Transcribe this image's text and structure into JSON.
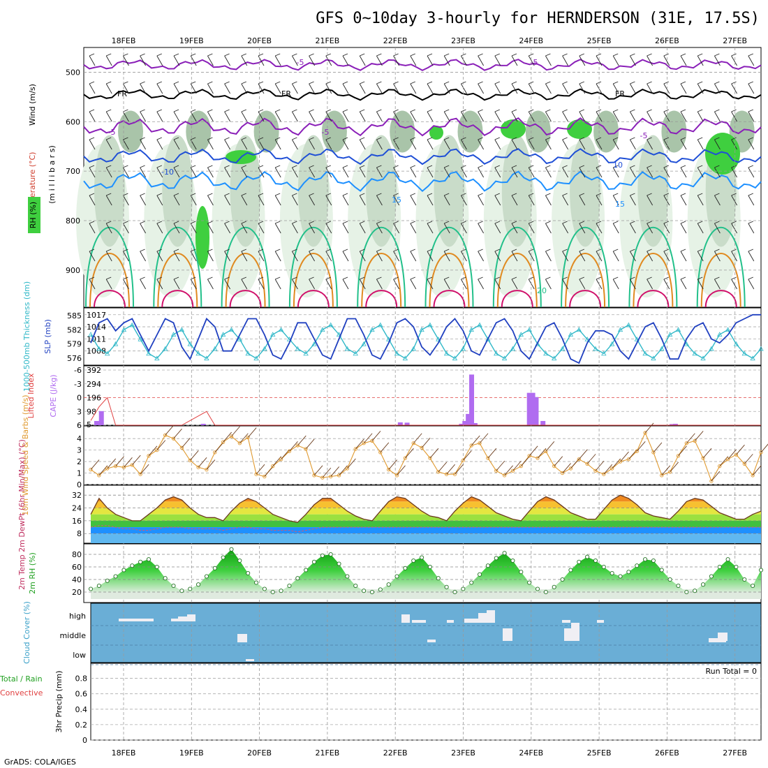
{
  "title": "GFS 0~10day 3-hourly for HERNDERSON (31E, 17.5S)",
  "credit": "GrADS: COLA/IGES",
  "dates": [
    "18FEB",
    "19FEB",
    "20FEB",
    "21FEB",
    "22FEB",
    "23FEB",
    "24FEB",
    "25FEB",
    "26FEB",
    "27FEB"
  ],
  "colors": {
    "purple": "#8a1fb8",
    "black": "#000000",
    "blue": "#1f4fd6",
    "skyblue": "#1e90ff",
    "teal": "#22c08a",
    "orange": "#e08a20",
    "magenta": "#d0106a",
    "rh_green": "#3fcf3f",
    "cape_bar": "#b06cf0",
    "li_line": "#e04040",
    "slp_line": "#2040c0",
    "thick_line": "#30b8c8",
    "wind_line": "#e09a30",
    "cloud_bg": "#6aaed6"
  },
  "panels": {
    "upper": {
      "axis_title_wind": "Wind (m/s)",
      "axis_title_temp": "Temperature (°C)",
      "axis_title_rh": "RH (%)",
      "axis_title_p": "(m i l l i b a r s)",
      "pressure_ticks": [
        "500",
        "600",
        "700",
        "800",
        "900"
      ],
      "contour_labels": [
        {
          "text": "-5",
          "color": "purple"
        },
        {
          "text": "-5",
          "color": "purple"
        },
        {
          "text": "FR",
          "color": "black"
        },
        {
          "text": "FR",
          "color": "black"
        },
        {
          "text": "FR",
          "color": "black"
        },
        {
          "text": "-5",
          "color": "purple"
        },
        {
          "text": "-5",
          "color": "purple"
        },
        {
          "text": "-5",
          "color": "purple"
        },
        {
          "text": "-10",
          "color": "blue"
        },
        {
          "text": "10",
          "color": "blue"
        },
        {
          "text": "15",
          "color": "skyblue"
        },
        {
          "text": "15",
          "color": "skyblue"
        },
        {
          "text": "20",
          "color": "teal"
        }
      ]
    },
    "slp": {
      "axis_title_thick": "1000-500mb Thickness (dm)",
      "axis_title_slp": "SLP (mb)",
      "ticks_left": [
        "585",
        "582",
        "579",
        "576"
      ],
      "ticks_right": [
        "1017",
        "1014",
        "1011",
        "1008"
      ],
      "slp_values": [
        1010,
        1015,
        1016,
        1013,
        1015,
        1016,
        1012,
        1008,
        1012,
        1016,
        1015,
        1009,
        1006,
        1011,
        1016,
        1014,
        1008,
        1008,
        1012,
        1016,
        1016,
        1012,
        1007,
        1006,
        1010,
        1015,
        1015,
        1011,
        1007,
        1006,
        1011,
        1016,
        1016,
        1012,
        1007,
        1006,
        1010,
        1015,
        1016,
        1014,
        1009,
        1007,
        1010,
        1014,
        1016,
        1013,
        1008,
        1007,
        1011,
        1015,
        1016,
        1013,
        1008,
        1006,
        1010,
        1014,
        1015,
        1011,
        1006,
        1005,
        1010,
        1013,
        1013,
        1012,
        1008,
        1006,
        1010,
        1014,
        1015,
        1011,
        1006,
        1006,
        1011,
        1014,
        1015,
        1011,
        1010,
        1012,
        1015,
        1016,
        1017,
        1017
      ],
      "thick_values": [
        581,
        578,
        577,
        579,
        582,
        583,
        580,
        577,
        576,
        578,
        581,
        582,
        579,
        577,
        576,
        578,
        581,
        582,
        580,
        577,
        576,
        578,
        581,
        582,
        580,
        578,
        577,
        579,
        582,
        583,
        581,
        578,
        577,
        579,
        582,
        583,
        580,
        577,
        576,
        578,
        582,
        583,
        580,
        577,
        576,
        578,
        582,
        583,
        580,
        577,
        576,
        578,
        581,
        582,
        579,
        577,
        576,
        578,
        581,
        582,
        580,
        578,
        577,
        579,
        582,
        583,
        580,
        577,
        576,
        578,
        581,
        582,
        579,
        577,
        576,
        578,
        581,
        582,
        579,
        577,
        576,
        578
      ]
    },
    "cape": {
      "axis_title_li": "Lifted Index",
      "axis_title_cape": "CAPE (J/kg)",
      "ticks_left": [
        "-6",
        "-3",
        "0",
        "3",
        "6"
      ],
      "ticks_right": [
        "392",
        "294",
        "196",
        "98",
        "5"
      ],
      "li_values": [
        5,
        2,
        0,
        6,
        6,
        6,
        6,
        6,
        6,
        6,
        6,
        6,
        5,
        4,
        3,
        6,
        6,
        6,
        6,
        6,
        6,
        6,
        6,
        6,
        6,
        6,
        6,
        6,
        6,
        6,
        6,
        6,
        6,
        6,
        6,
        6,
        6,
        6,
        6,
        6,
        6,
        6,
        6,
        6,
        6,
        6,
        6,
        6,
        6,
        6,
        6,
        6,
        6,
        6,
        6,
        6,
        6,
        6,
        6,
        6,
        6,
        6,
        6,
        6,
        6,
        6,
        6,
        6,
        6,
        6,
        6,
        6,
        6,
        6,
        6,
        6,
        6,
        6,
        6,
        6,
        6,
        6
      ],
      "cape_bars": [
        {
          "day": 0.03,
          "v": 30
        },
        {
          "day": 0.1,
          "v": 100
        },
        {
          "day": 1.6,
          "v": 10
        },
        {
          "day": 4.5,
          "v": 20
        },
        {
          "day": 4.6,
          "v": 18
        },
        {
          "day": 5.4,
          "v": 10
        },
        {
          "day": 5.45,
          "v": 30
        },
        {
          "day": 5.5,
          "v": 80
        },
        {
          "day": 5.55,
          "v": 360
        },
        {
          "day": 5.6,
          "v": 15
        },
        {
          "day": 6.4,
          "v": 230
        },
        {
          "day": 6.45,
          "v": 230
        },
        {
          "day": 6.5,
          "v": 200
        },
        {
          "day": 6.6,
          "v": 30
        },
        {
          "day": 8.5,
          "v": 8
        },
        {
          "day": 8.55,
          "v": 10
        }
      ]
    },
    "wind10": {
      "axis_title": "10m Wind Speed & Barbs (m/s)",
      "ticks": [
        "4",
        "3",
        "2",
        "1",
        "0"
      ],
      "values": [
        1.3,
        0.8,
        1.4,
        1.6,
        1.5,
        1.7,
        0.9,
        2.5,
        3.0,
        4.3,
        4.0,
        3.2,
        2.1,
        1.5,
        1.3,
        2.8,
        3.7,
        4.2,
        3.6,
        4.1,
        0.9,
        0.7,
        1.6,
        2.2,
        2.9,
        3.4,
        3.1,
        0.8,
        0.6,
        0.7,
        0.8,
        1.4,
        3.1,
        3.6,
        3.8,
        2.8,
        1.3,
        0.8,
        2.3,
        3.6,
        3.2,
        2.3,
        1.1,
        0.9,
        0.9,
        2.1,
        3.4,
        3.6,
        2.3,
        1.2,
        0.8,
        1.2,
        1.6,
        2.5,
        2.3,
        2.9,
        1.6,
        1.0,
        1.4,
        2.2,
        1.8,
        1.2,
        0.9,
        1.4,
        2.0,
        2.2,
        2.9,
        4.5,
        2.8,
        0.8,
        1.1,
        2.5,
        3.6,
        3.8,
        2.3,
        0.3,
        1.6,
        2.2,
        2.6,
        1.8,
        0.8,
        2.8
      ]
    },
    "temp": {
      "axis_title": "2m Temp 2m DewPt (6hr Min/Max) (°C)",
      "ticks": [
        "32",
        "24",
        "16",
        "8"
      ],
      "temp_values": [
        20,
        30,
        24,
        20,
        18,
        16,
        16,
        20,
        24,
        29,
        31,
        29,
        24,
        20,
        18,
        18,
        16,
        22,
        27,
        30,
        28,
        24,
        20,
        18,
        16,
        15,
        20,
        26,
        30,
        30,
        26,
        22,
        19,
        17,
        16,
        22,
        28,
        31,
        30,
        26,
        22,
        19,
        18,
        16,
        22,
        27,
        31,
        29,
        25,
        21,
        19,
        17,
        16,
        22,
        28,
        31,
        29,
        25,
        21,
        19,
        17,
        17,
        23,
        29,
        32,
        30,
        26,
        21,
        19,
        18,
        17,
        22,
        28,
        30,
        29,
        25,
        21,
        19,
        17,
        17,
        20,
        22
      ],
      "dewpt_values": [
        12,
        13,
        13,
        12,
        11,
        11,
        10,
        10,
        11,
        12,
        12,
        12,
        11,
        11,
        11,
        11,
        10,
        11,
        12,
        12,
        11,
        11,
        10,
        10,
        10,
        9,
        10,
        11,
        12,
        12,
        12,
        12,
        12,
        12,
        12,
        12,
        12,
        12,
        12,
        12,
        12,
        12,
        12,
        12,
        12,
        12,
        12,
        12,
        12,
        12,
        12,
        12,
        12,
        12,
        12,
        12,
        12,
        12,
        12,
        12,
        12,
        12,
        12,
        12,
        12,
        12,
        12,
        12,
        12,
        12,
        12,
        12,
        12,
        12,
        12,
        12,
        12,
        12,
        12,
        12,
        12,
        12
      ]
    },
    "rh2m": {
      "axis_title": "2m RH (%)",
      "ticks": [
        "80",
        "60",
        "40",
        "20"
      ],
      "values": [
        25,
        30,
        38,
        45,
        55,
        62,
        68,
        72,
        60,
        42,
        30,
        22,
        25,
        32,
        45,
        58,
        75,
        88,
        70,
        50,
        35,
        25,
        20,
        22,
        30,
        42,
        55,
        68,
        78,
        80,
        65,
        45,
        30,
        22,
        20,
        24,
        32,
        45,
        58,
        70,
        75,
        60,
        42,
        28,
        20,
        25,
        35,
        48,
        62,
        74,
        82,
        70,
        52,
        35,
        25,
        20,
        28,
        40,
        55,
        68,
        76,
        70,
        60,
        50,
        45,
        52,
        62,
        72,
        70,
        55,
        40,
        30,
        20,
        22,
        32,
        45,
        60,
        72,
        60,
        40,
        30,
        55
      ]
    },
    "cloud": {
      "axis_title": "Cloud Cover (%)",
      "levels": [
        "high",
        "middle",
        "low"
      ]
    },
    "precip": {
      "axis_title_a": "Total / Rain",
      "axis_title_b": "Convective",
      "axis_title_c": "3hr Precip (mm)",
      "ticks": [
        "0.8",
        "0.6",
        "0.4",
        "0.2",
        "0"
      ],
      "run_total": "Run Total = 0"
    }
  }
}
